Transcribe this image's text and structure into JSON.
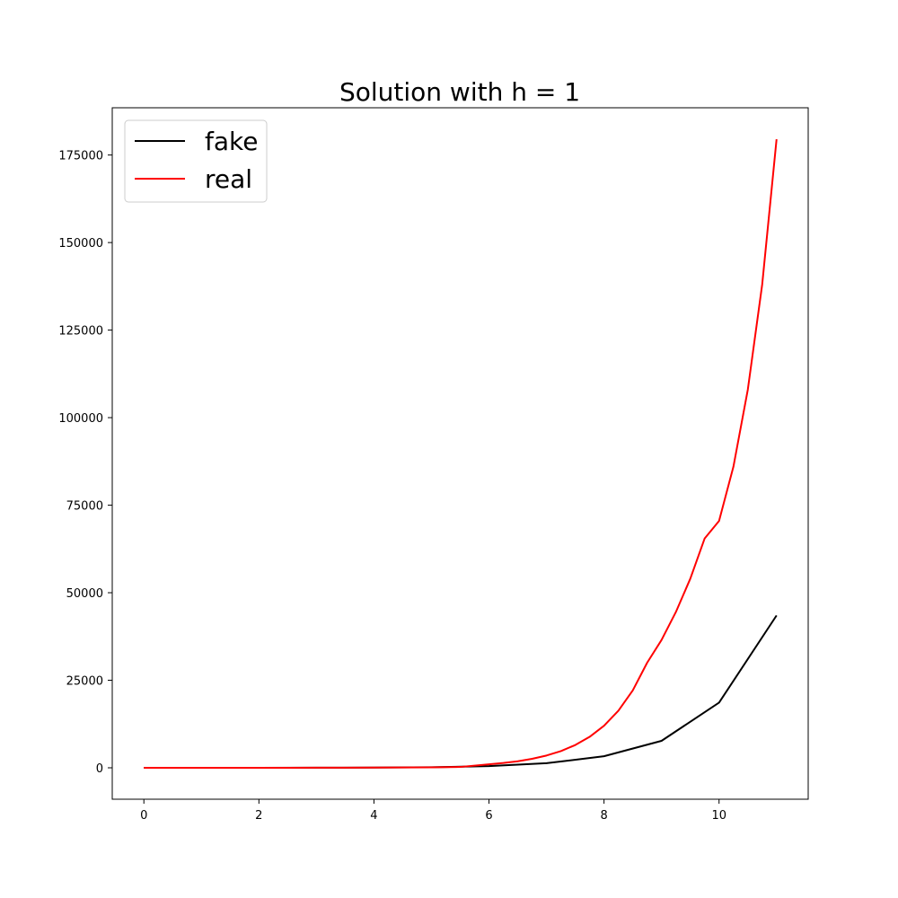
{
  "chart_data": {
    "type": "line",
    "title": "Solution with h = 1",
    "xlabel": "",
    "ylabel": "",
    "xlim": [
      -0.55,
      11.55
    ],
    "ylim": [
      -8976,
      188496
    ],
    "xticks": [
      0,
      2,
      4,
      6,
      8,
      10
    ],
    "xtick_labels": [
      "0",
      "2",
      "4",
      "6",
      "8",
      "10"
    ],
    "yticks": [
      0,
      25000,
      50000,
      75000,
      100000,
      125000,
      150000,
      175000
    ],
    "ytick_labels": [
      "0",
      "25000",
      "50000",
      "75000",
      "100000",
      "125000",
      "150000",
      "175000"
    ],
    "grid": false,
    "legend": {
      "placement": "upper-left",
      "entries": [
        "fake",
        "real"
      ]
    },
    "series": [
      {
        "name": "fake",
        "color": "#000000",
        "x": [
          0,
          1,
          2,
          3,
          4,
          5,
          6,
          7,
          8,
          9,
          10,
          11
        ],
        "y": [
          0,
          1,
          5,
          17,
          50,
          150,
          470,
          1300,
          3300,
          7700,
          18600,
          43500
        ]
      },
      {
        "name": "real",
        "color": "#ff0000",
        "x": [
          0,
          0.5,
          1,
          1.5,
          2,
          2.5,
          3,
          3.5,
          4,
          4.5,
          5,
          5.5,
          6,
          6.25,
          6.5,
          6.75,
          7,
          7.25,
          7.5,
          7.75,
          8,
          8.25,
          8.5,
          8.75,
          9,
          9.25,
          9.5,
          9.75,
          10,
          10.25,
          10.5,
          10.75,
          11
        ],
        "y": [
          0,
          1,
          2,
          4,
          6,
          10,
          17,
          29,
          50,
          84,
          140,
          240,
          990,
          1370,
          1870,
          2560,
          3500,
          4770,
          6500,
          8840,
          12000,
          16300,
          22100,
          30000,
          36500,
          44500,
          54000,
          65500,
          70500,
          86000,
          108000,
          138000,
          179500
        ]
      }
    ]
  }
}
